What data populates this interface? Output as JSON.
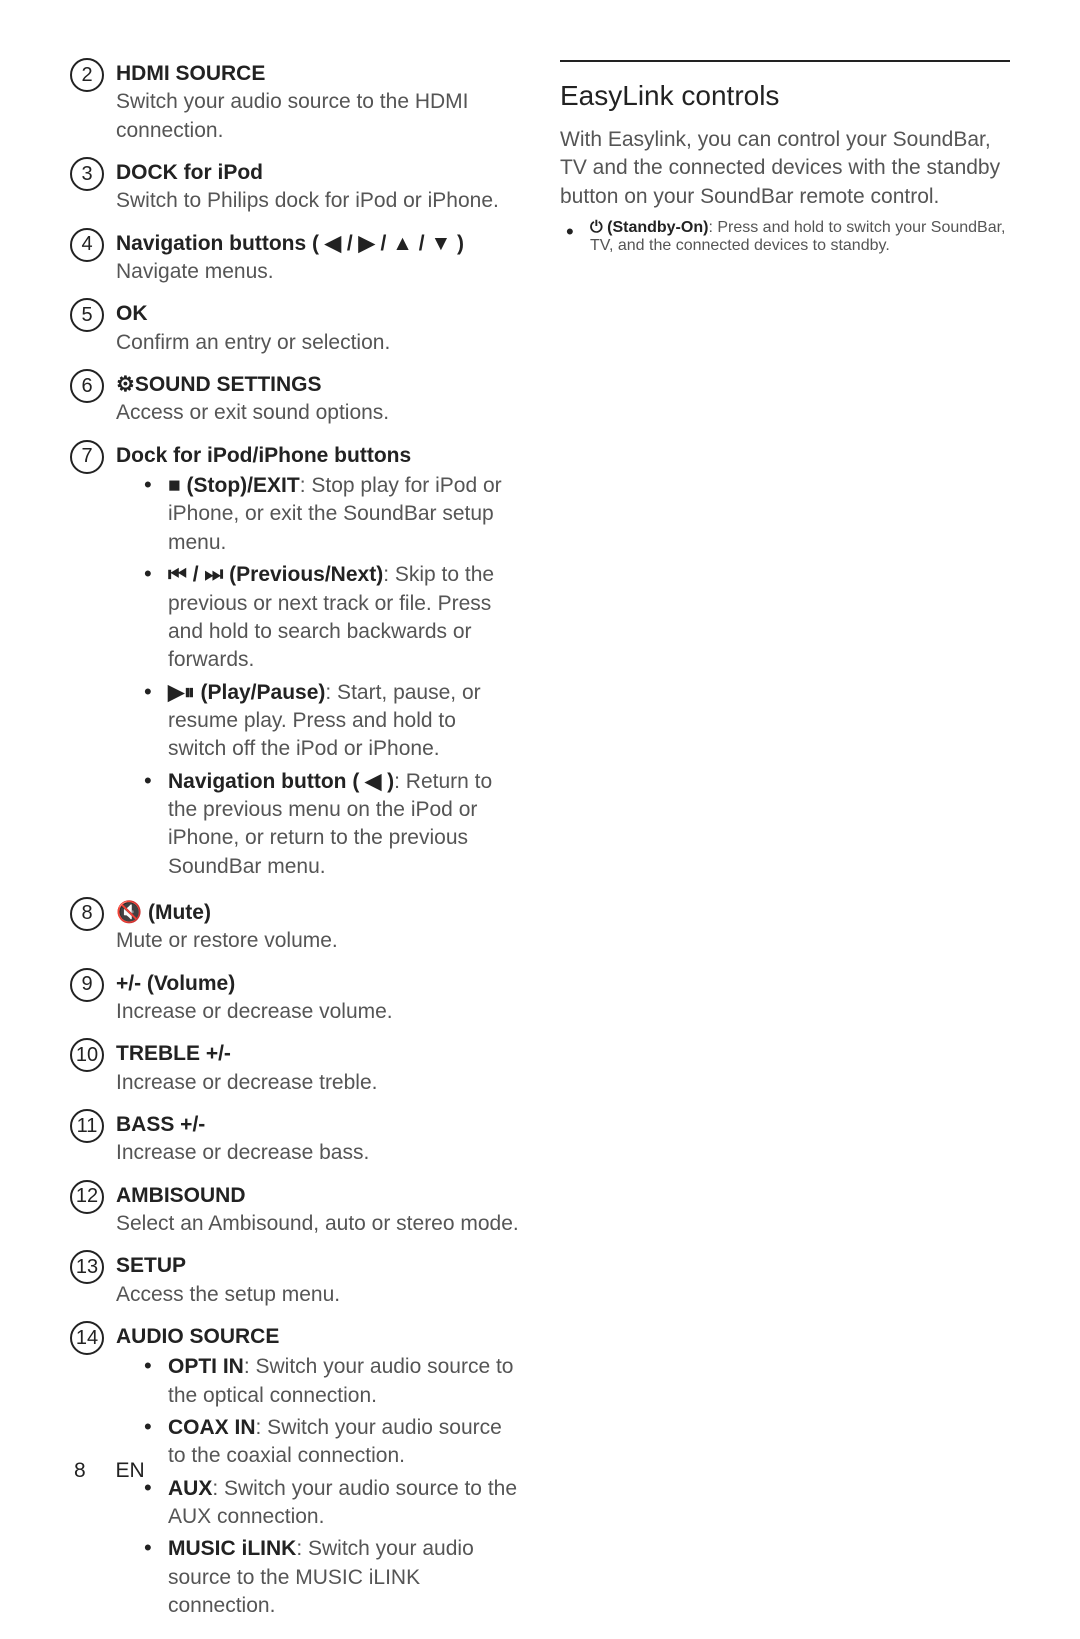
{
  "leftItems": [
    {
      "num": "2",
      "title": "HDMI SOURCE",
      "titleIcon": "",
      "desc": "Switch your audio source to the HDMI connection.",
      "sub": []
    },
    {
      "num": "3",
      "title": "DOCK for iPod",
      "titleIcon": "",
      "desc": "Switch to Philips dock for iPod or iPhone.",
      "sub": []
    },
    {
      "num": "4",
      "title": "Navigation buttons",
      "titleIcon": "( ◀ / ▶ / ▲ / ▼ )",
      "desc": "Navigate menus.",
      "sub": []
    },
    {
      "num": "5",
      "title": "OK",
      "titleIcon": "",
      "desc": "Confirm an entry or selection.",
      "sub": []
    },
    {
      "num": "6",
      "title": "SOUND SETTINGS",
      "titleIconPre": "⚙",
      "titleIcon": "",
      "desc": "Access or exit sound options.",
      "sub": []
    },
    {
      "num": "7",
      "title": "Dock for iPod/iPhone buttons",
      "titleIcon": "",
      "desc": "",
      "sub": [
        {
          "iconPre": "■",
          "bold": " (Stop)/EXIT",
          "text": ": Stop play for iPod or iPhone, or exit the SoundBar setup menu."
        },
        {
          "iconPre": " ⏮ / ⏭ ",
          "bold": "(Previous/Next)",
          "text": ": Skip to the previous or next track or file. Press and hold to search backwards or forwards."
        },
        {
          "iconPre": "▶⏸ ",
          "bold": "(Play/Pause)",
          "text": ": Start, pause, or resume play. Press and hold to switch off the iPod or iPhone."
        },
        {
          "iconPre": "",
          "bold": "Navigation button",
          "mid": " ( ◀ )",
          "text": ": Return to the previous menu on the iPod or iPhone, or return to the previous SoundBar menu."
        }
      ]
    },
    {
      "num": "8",
      "title": "(Mute)",
      "titleIconPre": "🔇 ",
      "titleIcon": "",
      "desc": "Mute or restore volume.",
      "sub": []
    },
    {
      "num": "9",
      "title": "+/- (Volume)",
      "titleIcon": "",
      "desc": "Increase or decrease volume.",
      "sub": []
    },
    {
      "num": "10",
      "title": "TREBLE +/-",
      "titleIcon": "",
      "desc": "Increase or decrease treble.",
      "sub": []
    },
    {
      "num": "11",
      "title": "BASS +/-",
      "titleIcon": "",
      "desc": "Increase or decrease bass.",
      "sub": []
    },
    {
      "num": "12",
      "title": "AMBISOUND",
      "titleIcon": "",
      "desc": "Select an Ambisound, auto or stereo mode.",
      "sub": []
    },
    {
      "num": "13",
      "title": "SETUP",
      "titleIcon": "",
      "desc": "Access the setup menu.",
      "sub": []
    },
    {
      "num": "14",
      "title": "AUDIO SOURCE",
      "titleIcon": "",
      "desc": "",
      "sub": [
        {
          "bold": "OPTI IN",
          "text": ": Switch your audio source to the optical connection."
        },
        {
          "bold": "COAX IN",
          "text": ": Switch your audio source to the coaxial connection."
        },
        {
          "bold": "AUX",
          "text": ": Switch your audio source to the AUX connection."
        },
        {
          "bold": "MUSIC iLINK",
          "text": ": Switch your audio source to the MUSIC iLINK connection."
        }
      ]
    }
  ],
  "right": {
    "heading": "EasyLink controls",
    "intro": "With Easylink, you can control your SoundBar, TV and the connected devices with the standby button on your SoundBar remote control.",
    "bullets": [
      {
        "iconPre": "⏻ ",
        "bold": "(Standby-On)",
        "text": ": Press and hold to switch your SoundBar, TV, and the connected devices to standby."
      }
    ]
  },
  "footer": {
    "page": "8",
    "lang": "EN"
  }
}
